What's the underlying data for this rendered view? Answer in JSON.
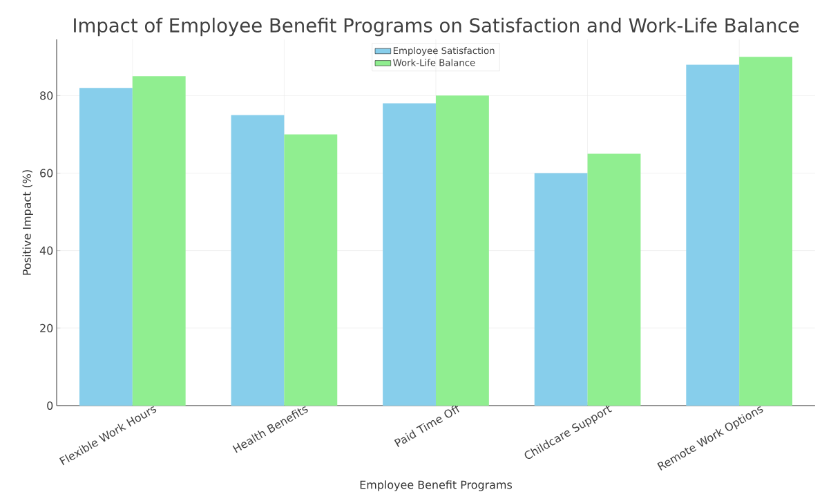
{
  "chart_data": {
    "type": "bar",
    "title": "Impact of Employee Benefit Programs on Satisfaction and Work-Life Balance",
    "xlabel": "Employee Benefit Programs",
    "ylabel": "Positive Impact (%)",
    "categories": [
      "Flexible Work Hours",
      "Health Benefits",
      "Paid Time Off",
      "Childcare Support",
      "Remote Work Options"
    ],
    "series": [
      {
        "name": "Employee Satisfaction",
        "color": "#87ceeb",
        "values": [
          82,
          75,
          78,
          60,
          88
        ]
      },
      {
        "name": "Work-Life Balance",
        "color": "#90ee90",
        "values": [
          85,
          70,
          80,
          65,
          90
        ]
      }
    ],
    "ylim": [
      0,
      94.5
    ],
    "yticks": [
      0,
      20,
      40,
      60,
      80
    ],
    "grid": true,
    "legend": "top"
  }
}
